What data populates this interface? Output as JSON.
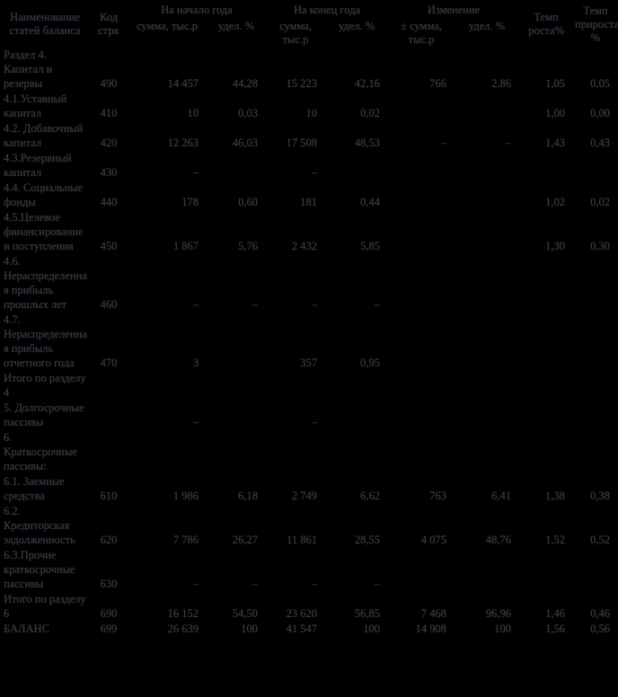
{
  "document": {
    "type": "scanned-balance-sheet-table",
    "background_color": "#000000",
    "ink_color": "#3a3a44"
  },
  "table": {
    "headers": {
      "name": "Наименование статей баланса",
      "code": "Код стрк",
      "groups": [
        {
          "label": "На начало года",
          "sub_sum": "сумма, тыс.р",
          "sub_share": "удел. %"
        },
        {
          "label": "На конец года",
          "sub_sum": "сумма, тыс.р",
          "sub_share": "удел. %"
        },
        {
          "label": "Изменение",
          "sub_sum": "± сумма, тыс.р",
          "sub_share": "удел. %"
        }
      ],
      "growth_rate": "Темп роста%",
      "increase_rate": "Темп прироста %"
    },
    "rows": [
      {
        "label": "Раздел 4. Капитал и резервы",
        "code": "490",
        "cells": [
          "14 457",
          "44,28",
          "15 223",
          "42,16",
          "766",
          "2,86",
          "1,05",
          "0,05"
        ]
      },
      {
        "label": "4.1.Уставный капитал",
        "code": "410",
        "cells": [
          "10",
          "0,03",
          "10",
          "0,02",
          "",
          "",
          "1,00",
          "0,00"
        ]
      },
      {
        "label": "4.2. Добавочный капитал",
        "code": "420",
        "cells": [
          "12 263",
          "46,03",
          "17 508",
          "48,53",
          "–",
          "–",
          "1,43",
          "0,43"
        ]
      },
      {
        "label": "4.3.Резервный капитал",
        "code": "430",
        "cells": [
          "–",
          "",
          "–",
          "",
          "",
          "",
          "",
          ""
        ]
      },
      {
        "label": "4.4. Социальные фонды",
        "code": "440",
        "cells": [
          "178",
          "0,60",
          "181",
          "0,44",
          "",
          "",
          "1,02",
          "0,02"
        ]
      },
      {
        "label": "4.5.Целевое финансирование и поступления",
        "code": "450",
        "cells": [
          "1 867",
          "5,76",
          "2 432",
          "5,85",
          "",
          "",
          "1,30",
          "0,30"
        ]
      },
      {
        "label": "4.6. Нераспределенная прибыль прошлых лет",
        "code": "460",
        "cells": [
          "–",
          "–",
          "–",
          "–",
          "",
          "",
          "",
          ""
        ]
      },
      {
        "label": "4.7. Нераспределенная прибыль отчетного года",
        "code": "470",
        "cells": [
          "3",
          "",
          "357",
          "0,95",
          "",
          "",
          "",
          ""
        ]
      },
      {
        "label": "Итого по разделу 4",
        "code": "",
        "cells": [
          "",
          "",
          "",
          "",
          "",
          "",
          "",
          ""
        ]
      },
      {
        "label": "5. Долгосрочные пассивы",
        "code": "",
        "cells": [
          "–",
          "",
          "–",
          "",
          "",
          "",
          "",
          ""
        ]
      },
      {
        "label": "6. Краткосрочные пассивы:",
        "code": "",
        "cells": [
          "",
          "",
          "",
          "",
          "",
          "",
          "",
          ""
        ]
      },
      {
        "label": "6.1. Заемные средства",
        "code": "610",
        "cells": [
          "1 986",
          "6,18",
          "2 749",
          "6,62",
          "763",
          "6,41",
          "1,38",
          "0,38"
        ]
      },
      {
        "label": "6.2. Кредиторская задолженность",
        "code": "620",
        "cells": [
          "7 786",
          "26,27",
          "11 861",
          "28,55",
          "4 075",
          "48,76",
          "1,52",
          "0,52"
        ]
      },
      {
        "label": "6.3.Прочие краткосрочные пассивы",
        "code": "630",
        "cells": [
          "–",
          "–",
          "–",
          "–",
          "",
          "",
          "",
          ""
        ]
      },
      {
        "label": "Итого по разделу 6",
        "code": "690",
        "cells": [
          "16 152",
          "54,50",
          "23 620",
          "56,85",
          "7 468",
          "96,96",
          "1,46",
          "0,46"
        ]
      },
      {
        "label": "БАЛАНС",
        "code": "699",
        "cells": [
          "26 639",
          "100",
          "41 547",
          "100",
          "14 908",
          "100",
          "1,56",
          "0,56"
        ]
      }
    ]
  }
}
